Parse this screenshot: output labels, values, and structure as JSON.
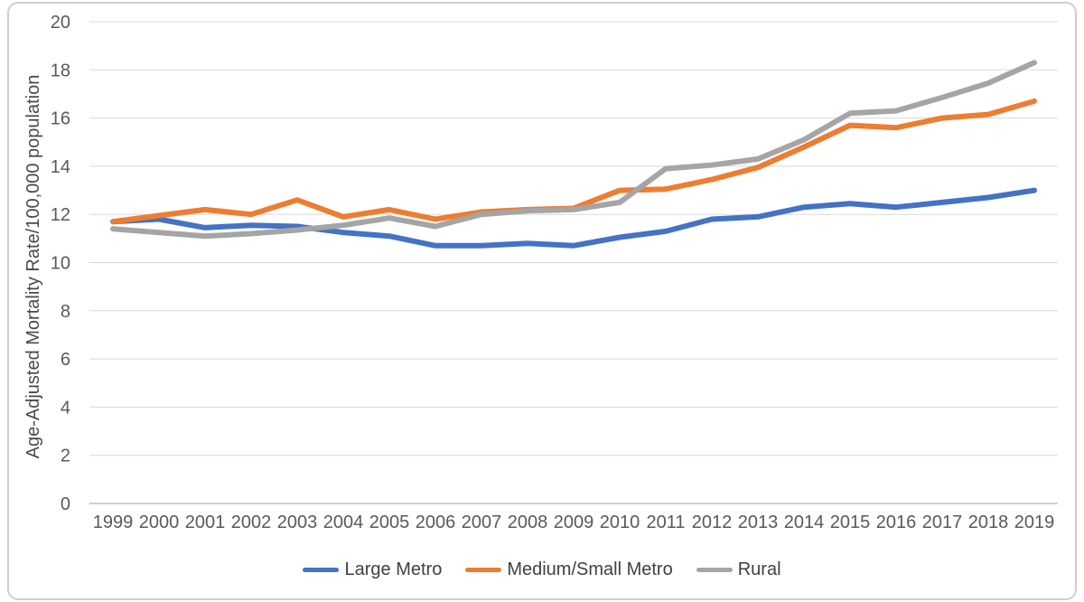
{
  "chart_data": {
    "type": "line",
    "title": "",
    "xlabel": "",
    "ylabel": "Age-Adjusted Mortality Rate/100,000 population",
    "ylim": [
      0,
      20
    ],
    "ytick_step": 2,
    "grid": true,
    "legend_position": "bottom",
    "x": [
      1999,
      2000,
      2001,
      2002,
      2003,
      2004,
      2005,
      2006,
      2007,
      2008,
      2009,
      2010,
      2011,
      2012,
      2013,
      2014,
      2015,
      2016,
      2017,
      2018,
      2019
    ],
    "series": [
      {
        "name": "Large Metro",
        "color": "#4472C4",
        "values": [
          11.7,
          11.8,
          11.45,
          11.55,
          11.5,
          11.25,
          11.1,
          10.7,
          10.7,
          10.8,
          10.7,
          11.05,
          11.3,
          11.8,
          11.9,
          12.3,
          12.45,
          12.3,
          12.5,
          12.7,
          13.0
        ]
      },
      {
        "name": "Medium/Small Metro",
        "color": "#ED7D31",
        "values": [
          11.7,
          11.95,
          12.2,
          12.0,
          12.6,
          11.9,
          12.2,
          11.8,
          12.1,
          12.2,
          12.25,
          13.0,
          13.05,
          13.45,
          13.95,
          14.8,
          15.7,
          15.6,
          16.0,
          16.15,
          16.7
        ]
      },
      {
        "name": "Rural",
        "color": "#A5A5A5",
        "values": [
          11.4,
          11.25,
          11.1,
          11.2,
          11.35,
          11.55,
          11.85,
          11.5,
          12.0,
          12.15,
          12.2,
          12.5,
          13.9,
          14.05,
          14.3,
          15.1,
          16.2,
          16.3,
          16.85,
          17.45,
          18.3
        ]
      }
    ]
  },
  "colors": {
    "gridline": "#d9d9d9",
    "axis_line": "#bfbfbf",
    "tick_text": "#595959",
    "frame_border": "#cfcfcf",
    "background": "#ffffff"
  }
}
